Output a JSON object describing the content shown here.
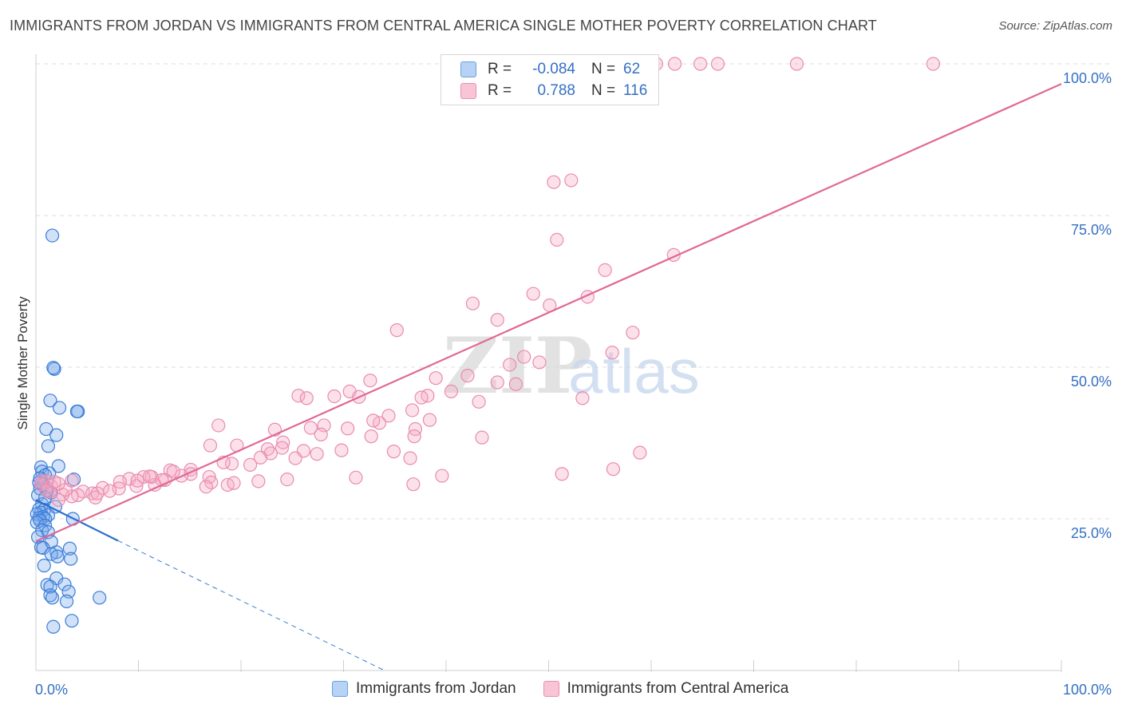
{
  "title": "IMMIGRANTS FROM JORDAN VS IMMIGRANTS FROM CENTRAL AMERICA SINGLE MOTHER POVERTY CORRELATION CHART",
  "source": "Source: ZipAtlas.com",
  "watermark": "ZIPatlas",
  "colors": {
    "jordan": "#3b7dd8",
    "central_america": "#e4709a",
    "axis_label": "#3470c4"
  },
  "legend": {
    "r_label": "R =",
    "n_label": "N =",
    "rows": [
      {
        "r": "-0.084",
        "n": "62"
      },
      {
        "r": "0.788",
        "n": "116"
      }
    ]
  },
  "chart_data": {
    "type": "scatter",
    "title": "IMMIGRANTS FROM JORDAN VS IMMIGRANTS FROM CENTRAL AMERICA SINGLE MOTHER POVERTY CORRELATION CHART",
    "xlabel": "",
    "ylabel": "Single Mother Poverty",
    "xlim": [
      0,
      100
    ],
    "ylim": [
      0,
      100
    ],
    "x_tick_labels": [
      "0.0%",
      "100.0%"
    ],
    "y_tick_labels": [
      "25.0%",
      "50.0%",
      "75.0%",
      "100.0%"
    ],
    "y_ticks": [
      25,
      50,
      75,
      100
    ],
    "grid": true,
    "legend_position": "bottom",
    "series": [
      {
        "name": "Immigrants from Jordan",
        "color": "#3b7dd8",
        "trend": {
          "x": [
            0,
            8
          ],
          "y": [
            28.1,
            21.4
          ],
          "dashed_to": [
            34,
            0
          ]
        },
        "points": [
          [
            1.6,
            71.7
          ],
          [
            1.8,
            49.7
          ],
          [
            1.7,
            49.9
          ],
          [
            1.4,
            44.5
          ],
          [
            2.3,
            43.3
          ],
          [
            4.1,
            42.7
          ],
          [
            4.0,
            42.7
          ],
          [
            1.0,
            39.8
          ],
          [
            2.0,
            38.8
          ],
          [
            1.2,
            37.0
          ],
          [
            0.5,
            33.5
          ],
          [
            2.2,
            33.7
          ],
          [
            0.6,
            32.8
          ],
          [
            1.3,
            32.5
          ],
          [
            0.9,
            32.2
          ],
          [
            3.7,
            31.5
          ],
          [
            0.3,
            31.0
          ],
          [
            0.7,
            30.6
          ],
          [
            1.0,
            30.2
          ],
          [
            0.4,
            30.0
          ],
          [
            1.1,
            29.6
          ],
          [
            0.2,
            28.9
          ],
          [
            1.5,
            29.3
          ],
          [
            0.6,
            27.4
          ],
          [
            1.9,
            27.0
          ],
          [
            0.3,
            26.6
          ],
          [
            0.8,
            26.5
          ],
          [
            0.5,
            26.0
          ],
          [
            0.1,
            25.8
          ],
          [
            1.2,
            25.6
          ],
          [
            0.7,
            25.3
          ],
          [
            0.3,
            25.1
          ],
          [
            0.9,
            25.0
          ],
          [
            0.4,
            24.7
          ],
          [
            0.1,
            24.4
          ],
          [
            3.6,
            25.0
          ],
          [
            0.9,
            23.9
          ],
          [
            0.6,
            23.1
          ],
          [
            1.2,
            22.8
          ],
          [
            0.2,
            22.0
          ],
          [
            1.5,
            21.2
          ],
          [
            0.5,
            20.3
          ],
          [
            0.7,
            20.2
          ],
          [
            3.3,
            20.1
          ],
          [
            2.0,
            19.5
          ],
          [
            1.5,
            19.2
          ],
          [
            2.1,
            18.8
          ],
          [
            3.4,
            18.4
          ],
          [
            0.8,
            17.3
          ],
          [
            2.0,
            15.2
          ],
          [
            2.8,
            14.2
          ],
          [
            1.1,
            14.1
          ],
          [
            1.4,
            13.8
          ],
          [
            3.2,
            13.0
          ],
          [
            1.4,
            12.4
          ],
          [
            1.6,
            12.0
          ],
          [
            6.2,
            12.0
          ],
          [
            3.0,
            11.4
          ],
          [
            3.5,
            8.2
          ],
          [
            1.7,
            7.2
          ],
          [
            0.4,
            31.7
          ],
          [
            0.9,
            28.5
          ]
        ]
      },
      {
        "name": "Immigrants from Central America",
        "color": "#e4709a",
        "trend": {
          "x": [
            0,
            100
          ],
          "y": [
            21.3,
            96.7
          ]
        },
        "points": [
          [
            60.5,
            100
          ],
          [
            62.3,
            100
          ],
          [
            64.8,
            100
          ],
          [
            66.5,
            100
          ],
          [
            74.2,
            100
          ],
          [
            87.5,
            100
          ],
          [
            50.5,
            80.5
          ],
          [
            52.2,
            80.8
          ],
          [
            50.8,
            71.0
          ],
          [
            62.2,
            68.5
          ],
          [
            55.5,
            66.0
          ],
          [
            42.6,
            60.5
          ],
          [
            48.5,
            62.1
          ],
          [
            53.8,
            61.6
          ],
          [
            50.1,
            60.2
          ],
          [
            45.0,
            57.8
          ],
          [
            35.2,
            56.1
          ],
          [
            58.2,
            55.7
          ],
          [
            56.2,
            52.4
          ],
          [
            47.6,
            51.7
          ],
          [
            46.2,
            50.4
          ],
          [
            49.1,
            50.8
          ],
          [
            32.6,
            47.8
          ],
          [
            39.0,
            48.2
          ],
          [
            42.1,
            48.6
          ],
          [
            45.0,
            47.5
          ],
          [
            46.8,
            47.2
          ],
          [
            30.6,
            46.0
          ],
          [
            25.6,
            45.3
          ],
          [
            26.4,
            44.9
          ],
          [
            29.1,
            45.2
          ],
          [
            31.5,
            45.1
          ],
          [
            38.2,
            45.3
          ],
          [
            40.5,
            46.0
          ],
          [
            37.6,
            45.0
          ],
          [
            53.3,
            44.9
          ],
          [
            43.2,
            44.3
          ],
          [
            36.7,
            42.9
          ],
          [
            34.4,
            42.0
          ],
          [
            33.5,
            40.8
          ],
          [
            32.9,
            41.2
          ],
          [
            37.0,
            39.8
          ],
          [
            38.4,
            41.3
          ],
          [
            26.8,
            40.0
          ],
          [
            28.1,
            40.4
          ],
          [
            30.4,
            39.9
          ],
          [
            23.3,
            39.7
          ],
          [
            27.8,
            38.9
          ],
          [
            36.9,
            38.6
          ],
          [
            32.7,
            38.6
          ],
          [
            43.5,
            38.4
          ],
          [
            17.8,
            40.4
          ],
          [
            24.1,
            37.6
          ],
          [
            22.6,
            36.5
          ],
          [
            19.6,
            37.1
          ],
          [
            17.0,
            37.1
          ],
          [
            26.1,
            36.2
          ],
          [
            24.0,
            36.7
          ],
          [
            29.8,
            36.3
          ],
          [
            34.9,
            36.1
          ],
          [
            27.4,
            35.7
          ],
          [
            22.9,
            35.8
          ],
          [
            21.9,
            35.1
          ],
          [
            25.3,
            35.0
          ],
          [
            36.5,
            35.0
          ],
          [
            19.1,
            34.1
          ],
          [
            18.3,
            34.3
          ],
          [
            20.9,
            33.9
          ],
          [
            15.1,
            33.1
          ],
          [
            58.9,
            35.9
          ],
          [
            56.3,
            33.2
          ],
          [
            51.3,
            32.4
          ],
          [
            39.6,
            32.1
          ],
          [
            31.2,
            31.8
          ],
          [
            24.5,
            31.5
          ],
          [
            21.7,
            31.2
          ],
          [
            16.9,
            31.9
          ],
          [
            15.1,
            32.4
          ],
          [
            13.1,
            33.0
          ],
          [
            14.2,
            32.1
          ],
          [
            12.6,
            31.4
          ],
          [
            11.3,
            31.9
          ],
          [
            9.1,
            31.6
          ],
          [
            10.5,
            31.9
          ],
          [
            8.2,
            31.1
          ],
          [
            17.1,
            31.0
          ],
          [
            18.7,
            30.6
          ],
          [
            16.6,
            30.3
          ],
          [
            36.8,
            30.7
          ],
          [
            19.3,
            30.9
          ],
          [
            12.3,
            31.4
          ],
          [
            11.6,
            30.6
          ],
          [
            9.8,
            30.4
          ],
          [
            8.1,
            30.0
          ],
          [
            6.5,
            30.1
          ],
          [
            7.2,
            29.6
          ],
          [
            4.6,
            29.5
          ],
          [
            5.5,
            29.2
          ],
          [
            4.1,
            28.9
          ],
          [
            5.8,
            28.5
          ],
          [
            3.5,
            28.7
          ],
          [
            2.6,
            29.0
          ],
          [
            1.4,
            29.5
          ],
          [
            2.9,
            29.8
          ],
          [
            1.5,
            30.4
          ],
          [
            2.2,
            30.8
          ],
          [
            1.1,
            31.2
          ],
          [
            0.6,
            31.2
          ],
          [
            0.5,
            30.7
          ],
          [
            3.5,
            31.3
          ],
          [
            1.8,
            31.1
          ],
          [
            9.9,
            31.3
          ],
          [
            13.4,
            32.8
          ],
          [
            11.1,
            32.0
          ],
          [
            2.2,
            28.1
          ],
          [
            1.0,
            29.7
          ],
          [
            6.0,
            29.2
          ]
        ]
      }
    ]
  },
  "bottom_legend": [
    "Immigrants from Jordan",
    "Immigrants from Central America"
  ]
}
